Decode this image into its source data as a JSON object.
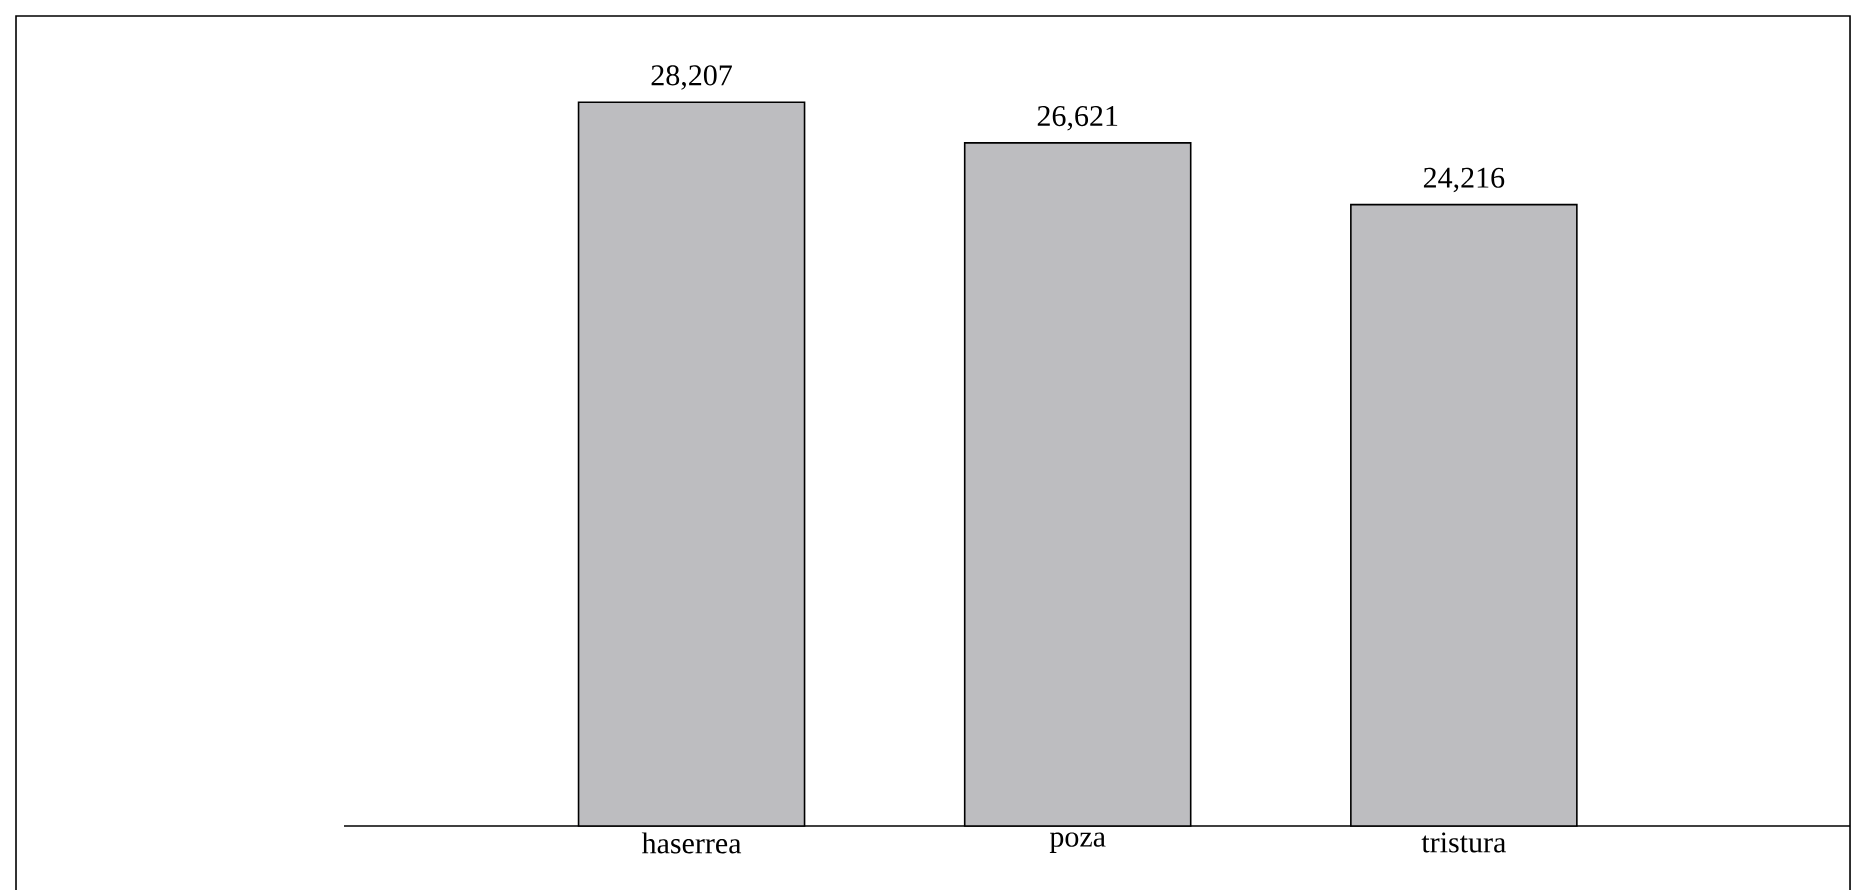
{
  "chart_data": {
    "type": "bar",
    "categories": [
      "haserrea",
      "poza",
      "tristura"
    ],
    "values": [
      28207,
      26621,
      24216
    ],
    "value_labels": [
      "28,207",
      "26,621",
      "24,216"
    ],
    "color": "#bdbdc0",
    "tick_labels": "x"
  }
}
